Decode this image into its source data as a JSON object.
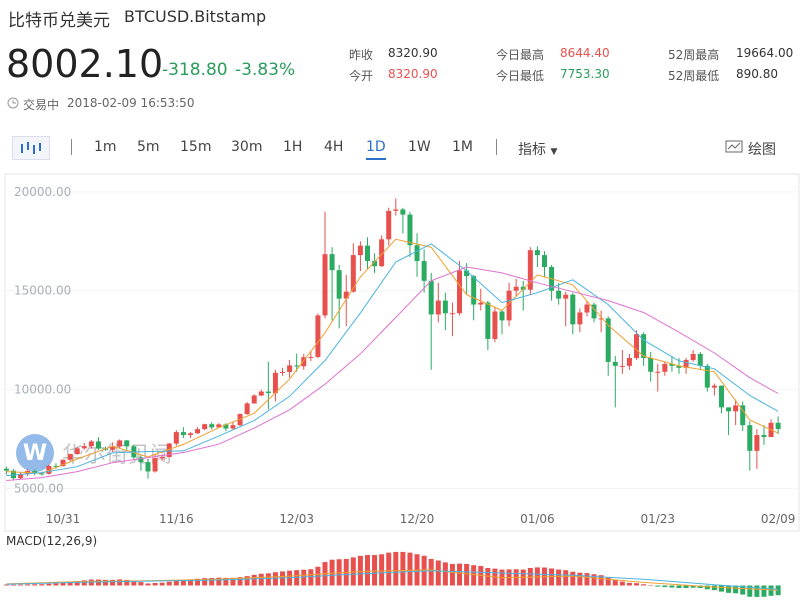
{
  "header": {
    "title": "比特币兑美元",
    "symbol": "BTCUSD.Bitstamp",
    "price": "8002.10",
    "change": "-318.80",
    "change_pct": "-3.83%",
    "status": "交易中",
    "time": "2018-02-09 16:53:50",
    "stats": [
      {
        "label": "昨收",
        "value": "8320.90"
      },
      {
        "label": "今开",
        "value": "8320.90"
      },
      {
        "label": "今日最高",
        "value": "8644.40"
      },
      {
        "label": "今日最低",
        "value": "7753.30"
      },
      {
        "label": "52周最高",
        "value": "19664.00"
      },
      {
        "label": "52周最低",
        "value": "890.80"
      }
    ]
  },
  "toolbar": {
    "intervals": [
      "1m",
      "5m",
      "15m",
      "30m",
      "1H",
      "4H",
      "1D",
      "1W",
      "1M"
    ],
    "indicators": "指标",
    "draw": "绘图"
  },
  "watermark": "华尔街见闻",
  "chart_data": {
    "type": "candlestick",
    "up_color": "#e8504e",
    "down_color": "#2bab62",
    "categories": [
      null,
      null,
      null,
      null,
      null,
      null,
      null,
      null,
      "10/31",
      null,
      null,
      null,
      null,
      null,
      null,
      null,
      null,
      null,
      null,
      null,
      null,
      null,
      null,
      null,
      "11/16",
      null,
      null,
      null,
      null,
      null,
      null,
      null,
      null,
      null,
      null,
      null,
      null,
      null,
      null,
      null,
      null,
      "12/03",
      null,
      null,
      null,
      null,
      null,
      null,
      null,
      null,
      null,
      null,
      null,
      null,
      null,
      null,
      null,
      null,
      "12/20",
      null,
      null,
      null,
      null,
      null,
      null,
      null,
      null,
      null,
      null,
      null,
      null,
      null,
      null,
      null,
      null,
      "01/06",
      null,
      null,
      null,
      null,
      null,
      null,
      null,
      null,
      null,
      null,
      null,
      null,
      null,
      null,
      null,
      null,
      "01/23",
      null,
      null,
      null,
      null,
      null,
      null,
      null,
      null,
      null,
      null,
      null,
      null,
      null,
      null,
      null,
      null,
      "02/09"
    ],
    "open": [
      6000,
      5900,
      5520,
      5740,
      5880,
      5760,
      5740,
      6140,
      6130,
      6450,
      6740,
      7030,
      7140,
      7380,
      7020,
      6960,
      7120,
      7430,
      7130,
      6570,
      6330,
      5860,
      6530,
      6590,
      7270,
      7850,
      7700,
      7790,
      8000,
      8250,
      8090,
      8240,
      8030,
      8200,
      8760,
      9300,
      9700,
      9900,
      9820,
      10850,
      10890,
      11220,
      11180,
      11640,
      11650,
      13750,
      16850,
      16040,
      14600,
      14950,
      16800,
      17280,
      16500,
      16240,
      17600,
      19040,
      19110,
      18850,
      17300,
      16500,
      15500,
      13800,
      14500,
      13860,
      13860,
      16020,
      15740,
      14300,
      14400,
      12560,
      13950,
      13500,
      15000,
      15200,
      15050,
      17050,
      16800,
      16200,
      15000,
      14600,
      14800,
      13300,
      13900,
      14300,
      13600,
      13600,
      11400,
      11200,
      11200,
      11600,
      12800,
      11600,
      10900,
      10900,
      11300,
      11200,
      11100,
      11500,
      11800,
      11200,
      10100,
      10200,
      9100,
      8900,
      9200,
      8200,
      6900,
      7700,
      7600,
      8320.9
    ],
    "high": [
      6100,
      5980,
      5820,
      5980,
      5950,
      5850,
      6200,
      6270,
      6470,
      6760,
      7100,
      7300,
      7450,
      7600,
      7120,
      7330,
      7480,
      7450,
      7200,
      6680,
      6480,
      6750,
      6720,
      7300,
      7950,
      8100,
      7850,
      8100,
      8280,
      8350,
      8300,
      8300,
      8360,
      8800,
      9370,
      9760,
      10000,
      11400,
      11000,
      11100,
      11500,
      11820,
      11800,
      11950,
      13850,
      19000,
      17200,
      16300,
      15800,
      17400,
      17500,
      17700,
      16900,
      17800,
      19200,
      19670,
      19190,
      19000,
      17900,
      17100,
      15900,
      15400,
      14900,
      14400,
      16500,
      16400,
      15800,
      15100,
      14500,
      14200,
      14000,
      15400,
      15600,
      15500,
      17200,
      17250,
      17000,
      16300,
      15400,
      14950,
      14900,
      14100,
      14500,
      14400,
      14000,
      13700,
      11700,
      12000,
      11800,
      13000,
      12900,
      11900,
      11300,
      11400,
      11700,
      11600,
      11600,
      12000,
      11900,
      11300,
      10300,
      10200,
      9100,
      9500,
      9400,
      8400,
      8000,
      8200,
      8500,
      8644.4
    ],
    "low": [
      5700,
      5400,
      5450,
      5630,
      5660,
      5650,
      5700,
      6000,
      6100,
      6380,
      6700,
      6950,
      7020,
      6950,
      6900,
      6850,
      7050,
      6960,
      6450,
      5900,
      5500,
      5800,
      6400,
      6570,
      7160,
      7550,
      7550,
      7760,
      7950,
      7980,
      8050,
      7900,
      7990,
      8150,
      8730,
      9280,
      9660,
      9000,
      9400,
      10700,
      10600,
      10900,
      11000,
      11450,
      11600,
      13600,
      13500,
      13100,
      13200,
      14900,
      16000,
      16100,
      15900,
      16200,
      17300,
      18800,
      17900,
      16700,
      15700,
      14900,
      11000,
      13400,
      13000,
      12700,
      13750,
      14800,
      13500,
      14000,
      12000,
      12400,
      12800,
      13200,
      14700,
      14000,
      14800,
      16200,
      15700,
      14500,
      14300,
      13200,
      12800,
      12900,
      13700,
      13400,
      12900,
      10700,
      9100,
      10800,
      11000,
      11500,
      11200,
      10400,
      9900,
      10700,
      10900,
      10800,
      10800,
      11400,
      11000,
      9900,
      9700,
      8800,
      7700,
      8200,
      7900,
      5900,
      6000,
      7200,
      7600,
      7753.3
    ],
    "close": [
      5900,
      5520,
      5740,
      5880,
      5760,
      5740,
      6140,
      6130,
      6450,
      6740,
      7030,
      7140,
      7380,
      7020,
      6960,
      7120,
      7430,
      7130,
      6570,
      6330,
      5860,
      6530,
      6590,
      7270,
      7850,
      7700,
      7790,
      8000,
      8250,
      8090,
      8240,
      8030,
      8200,
      8760,
      9300,
      9700,
      9900,
      9820,
      10850,
      10890,
      11220,
      11180,
      11640,
      11650,
      13750,
      16850,
      16040,
      14600,
      14950,
      16800,
      17280,
      16500,
      16240,
      17600,
      19040,
      19110,
      18850,
      17300,
      16500,
      15500,
      13800,
      14500,
      13860,
      13860,
      16020,
      15740,
      14300,
      14400,
      12560,
      13950,
      13500,
      15000,
      15200,
      15050,
      17050,
      16800,
      16200,
      15000,
      14600,
      14800,
      13300,
      13900,
      14300,
      13600,
      13600,
      11400,
      11200,
      11200,
      11600,
      12800,
      11600,
      10900,
      10900,
      11300,
      11200,
      11100,
      11500,
      11800,
      11200,
      10100,
      10200,
      9100,
      8900,
      9200,
      8200,
      6900,
      7700,
      7600,
      8320.9,
      8002.1
    ],
    "ylim": [
      3000,
      20700
    ],
    "yticks": [
      {
        "value": 5000,
        "label": "5000.00"
      },
      {
        "value": 10000,
        "label": "10000.00"
      },
      {
        "value": 15000,
        "label": "15000.00"
      },
      {
        "value": 20000,
        "label": "20000.00"
      }
    ],
    "ma_lines": [
      {
        "color": "#f0a030",
        "x": [
          0,
          5,
          10,
          15,
          20,
          25,
          30,
          35,
          40,
          45,
          50,
          55,
          60,
          65,
          70,
          75,
          80,
          85,
          90,
          95,
          100,
          105,
          109
        ],
        "values": [
          5850,
          5770,
          6490,
          7130,
          6600,
          7230,
          8070,
          8800,
          10530,
          12870,
          15700,
          17600,
          17200,
          14800,
          14000,
          15800,
          15300,
          13250,
          11700,
          11200,
          10900,
          8460,
          7800
        ]
      },
      {
        "color": "#4ab3e0",
        "x": [
          0,
          5,
          10,
          15,
          20,
          25,
          30,
          35,
          40,
          45,
          50,
          55,
          60,
          65,
          70,
          75,
          80,
          85,
          90,
          95,
          100,
          105,
          109
        ],
        "values": [
          5650,
          5800,
          6100,
          6800,
          6870,
          6900,
          7650,
          8430,
          9660,
          11470,
          13880,
          16450,
          17370,
          16000,
          14400,
          14900,
          15550,
          14300,
          12500,
          11450,
          11050,
          9700,
          8900
        ]
      },
      {
        "color": "#e070d0",
        "x": [
          0,
          5,
          10,
          15,
          20,
          25,
          30,
          35,
          40,
          45,
          50,
          55,
          60,
          65,
          70,
          75,
          80,
          85,
          90,
          95,
          100,
          105,
          109
        ],
        "values": [
          5400,
          5550,
          5850,
          6300,
          6560,
          6820,
          7240,
          8050,
          8980,
          10270,
          11810,
          13650,
          15500,
          16200,
          15900,
          15400,
          14950,
          14500,
          13900,
          12900,
          11850,
          10600,
          9800
        ]
      }
    ],
    "macd": {
      "label": "MACD(12,26,9)",
      "ylim": [
        -800,
        2400
      ],
      "values": [
        60,
        50,
        55,
        70,
        80,
        85,
        110,
        130,
        170,
        220,
        280,
        330,
        380,
        380,
        360,
        360,
        390,
        360,
        290,
        220,
        130,
        160,
        180,
        240,
        320,
        360,
        390,
        430,
        470,
        480,
        500,
        490,
        490,
        530,
        600,
        680,
        750,
        780,
        850,
        900,
        950,
        980,
        1010,
        1040,
        1200,
        1500,
        1650,
        1680,
        1700,
        1800,
        1900,
        1950,
        1950,
        2000,
        2100,
        2150,
        2150,
        2100,
        2000,
        1900,
        1700,
        1600,
        1480,
        1380,
        1400,
        1380,
        1300,
        1250,
        1120,
        1080,
        1020,
        1030,
        1040,
        1020,
        1120,
        1160,
        1150,
        1090,
        1020,
        980,
        880,
        820,
        790,
        720,
        660,
        500,
        360,
        250,
        170,
        150,
        80,
        0,
        -70,
        -100,
        -130,
        -160,
        -160,
        -140,
        -160,
        -240,
        -300,
        -390,
        -470,
        -500,
        -580,
        -720,
        -730,
        -720,
        -660,
        -620
      ],
      "lines": [
        {
          "color": "#f0a030",
          "x": [
            0,
            10,
            20,
            30,
            40,
            50,
            60,
            70,
            80,
            90,
            100,
            109
          ],
          "values": [
            100,
            250,
            300,
            400,
            600,
            900,
            1000,
            500,
            600,
            200,
            -100,
            -300
          ]
        },
        {
          "color": "#4ab3e0",
          "x": [
            0,
            10,
            20,
            30,
            40,
            50,
            60,
            70,
            80,
            90,
            100,
            109
          ],
          "values": [
            80,
            200,
            280,
            350,
            500,
            750,
            950,
            800,
            650,
            400,
            50,
            -250
          ]
        }
      ]
    }
  }
}
